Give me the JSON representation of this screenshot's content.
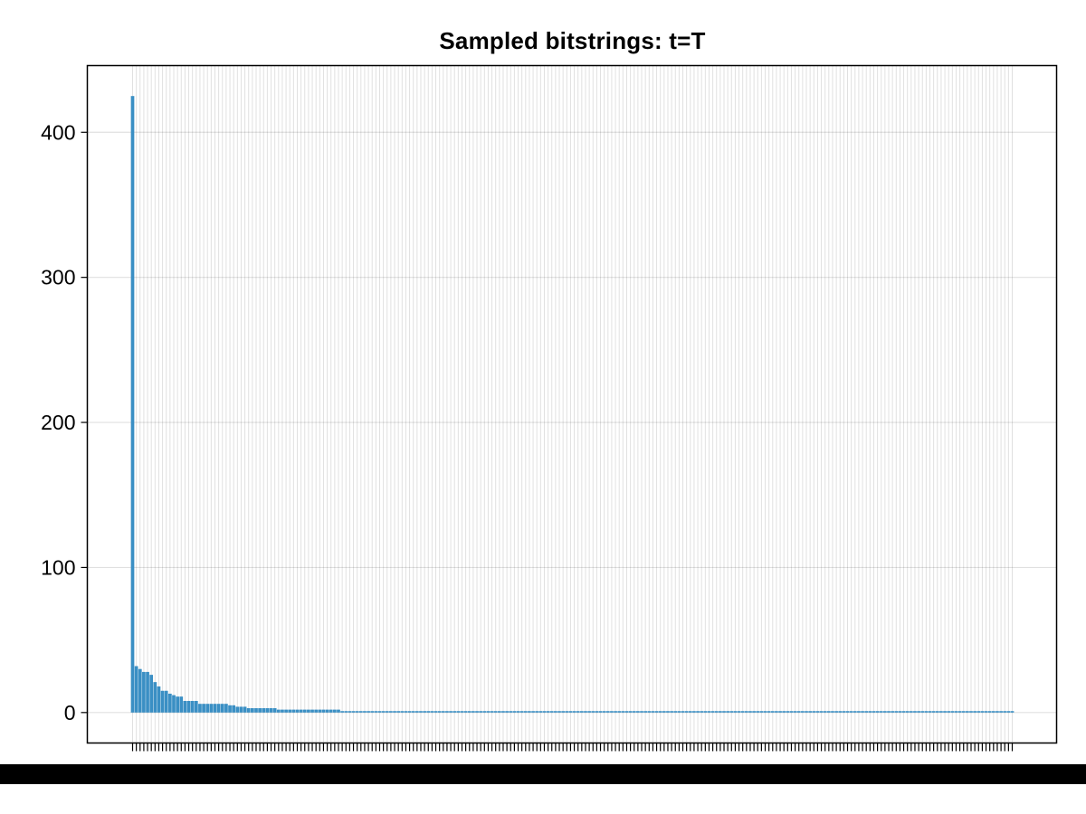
{
  "chart_data": {
    "type": "bar",
    "title": "Sampled bitstrings: t=T",
    "xlabel": "",
    "ylabel": "",
    "ylim": [
      -21,
      446
    ],
    "yticks": [
      0,
      100,
      200,
      300,
      400
    ],
    "grid": true,
    "legend": "none",
    "bar_color": "#3a8fc4",
    "values": [
      425,
      32,
      30,
      28,
      28,
      26,
      21,
      18,
      15,
      15,
      13,
      12,
      11,
      11,
      8,
      8,
      8,
      8,
      6,
      6,
      6,
      6,
      6,
      6,
      6,
      6,
      5,
      5,
      4,
      4,
      4,
      3,
      3,
      3,
      3,
      3,
      3,
      3,
      3,
      2,
      2,
      2,
      2,
      2,
      2,
      2,
      2,
      2,
      2,
      2,
      2,
      2,
      2,
      2,
      2,
      2,
      1,
      1,
      1,
      1,
      1,
      1,
      1,
      1,
      1,
      1,
      1,
      1,
      1,
      1,
      1,
      1,
      1,
      1,
      1,
      1,
      1,
      1,
      1,
      1,
      1,
      1,
      1,
      1,
      1,
      1,
      1,
      1,
      1,
      1,
      1,
      1,
      1,
      1,
      1,
      1,
      1,
      1,
      1,
      1,
      1,
      1,
      1,
      1,
      1,
      1,
      1,
      1,
      1,
      1,
      1,
      1,
      1,
      1,
      1,
      1,
      1,
      1,
      1,
      1,
      1,
      1,
      1,
      1,
      1,
      1,
      1,
      1,
      1,
      1,
      1,
      1,
      1,
      1,
      1,
      1,
      1,
      1,
      1,
      1,
      1,
      1,
      1,
      1,
      1,
      1,
      1,
      1,
      1,
      1,
      1,
      1,
      1,
      1,
      1,
      1,
      1,
      1,
      1,
      1,
      1,
      1,
      1,
      1,
      1,
      1,
      1,
      1,
      1,
      1,
      1,
      1,
      1,
      1,
      1,
      1,
      1,
      1,
      1,
      1,
      1,
      1,
      1,
      1,
      1,
      1,
      1,
      1,
      1,
      1,
      1,
      1,
      1,
      1,
      1,
      1,
      1,
      1,
      1,
      1,
      1,
      1,
      1,
      1,
      1,
      1,
      1,
      1,
      1,
      1,
      1,
      1,
      1,
      1,
      1,
      1,
      1,
      1,
      1,
      1,
      1,
      1,
      1,
      1,
      1,
      1,
      1,
      1,
      1,
      1,
      1,
      1,
      1,
      1,
      1,
      1
    ]
  }
}
